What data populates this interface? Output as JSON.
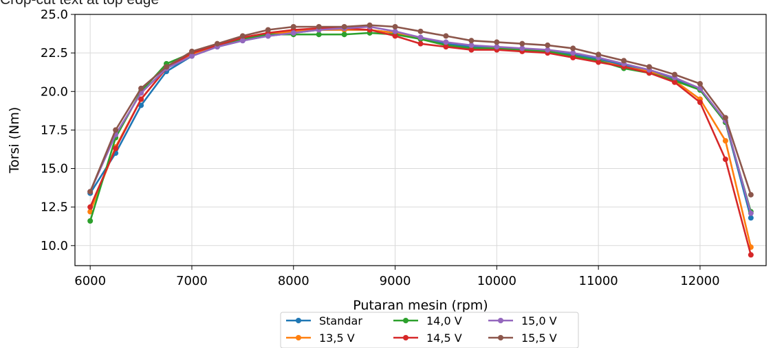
{
  "page_top_text": "Crop-cut text at top edge",
  "chart_data": {
    "type": "line",
    "title": "",
    "xlabel": "Putaran mesin (rpm)",
    "ylabel": "Torsi (Nm)",
    "xlim": [
      5850,
      12650
    ],
    "ylim": [
      8.7,
      25.0
    ],
    "xticks": [
      6000,
      7000,
      8000,
      9000,
      10000,
      11000,
      12000
    ],
    "yticks": [
      10.0,
      12.5,
      15.0,
      17.5,
      20.0,
      22.5,
      25.0
    ],
    "xtick_labels": [
      "6000",
      "7000",
      "8000",
      "9000",
      "10000",
      "11000",
      "12000"
    ],
    "ytick_labels": [
      "10.0",
      "12.5",
      "15.0",
      "17.5",
      "20.0",
      "22.5",
      "25.0"
    ],
    "grid": true,
    "legend_position": "bottom-center",
    "x": [
      6000,
      6250,
      6500,
      6750,
      7000,
      7250,
      7500,
      7750,
      8000,
      8250,
      8500,
      8750,
      9000,
      9250,
      9500,
      9750,
      10000,
      10250,
      10500,
      10750,
      11000,
      11250,
      11500,
      11750,
      12000,
      12250,
      12500
    ],
    "series": [
      {
        "name": "Standar",
        "color": "#1f77b4",
        "values": [
          13.4,
          16.0,
          19.1,
          21.3,
          22.3,
          22.9,
          23.3,
          23.6,
          23.8,
          24.0,
          24.0,
          24.0,
          23.8,
          23.5,
          23.1,
          22.9,
          22.8,
          22.7,
          22.6,
          22.4,
          22.1,
          21.7,
          21.3,
          20.8,
          20.1,
          18.0,
          11.8
        ]
      },
      {
        "name": "13,5 V",
        "color": "#ff7f0e",
        "values": [
          12.2,
          16.4,
          19.5,
          21.5,
          22.4,
          23.0,
          23.4,
          23.7,
          23.9,
          24.0,
          24.0,
          24.0,
          23.8,
          23.4,
          23.0,
          22.8,
          22.8,
          22.7,
          22.6,
          22.3,
          22.0,
          21.6,
          21.3,
          20.7,
          19.5,
          16.8,
          9.9
        ]
      },
      {
        "name": "14,0 V",
        "color": "#2ca02c",
        "values": [
          11.6,
          17.0,
          20.0,
          21.8,
          22.5,
          23.0,
          23.4,
          23.7,
          23.7,
          23.7,
          23.7,
          23.8,
          23.7,
          23.4,
          23.0,
          22.8,
          22.8,
          22.7,
          22.6,
          22.3,
          22.0,
          21.5,
          21.2,
          20.7,
          20.1,
          18.0,
          12.2
        ]
      },
      {
        "name": "14,5 V",
        "color": "#d62728",
        "values": [
          12.5,
          16.3,
          19.5,
          21.5,
          22.5,
          23.0,
          23.5,
          23.8,
          24.0,
          24.1,
          24.1,
          24.0,
          23.6,
          23.1,
          22.9,
          22.7,
          22.7,
          22.6,
          22.5,
          22.2,
          21.9,
          21.6,
          21.2,
          20.6,
          19.3,
          15.6,
          9.4
        ]
      },
      {
        "name": "15,0 V",
        "color": "#9467bd",
        "values": [
          13.5,
          17.2,
          19.9,
          21.5,
          22.3,
          22.9,
          23.3,
          23.6,
          23.8,
          24.0,
          24.1,
          24.2,
          23.9,
          23.5,
          23.2,
          23.0,
          22.9,
          22.8,
          22.7,
          22.5,
          22.2,
          21.8,
          21.4,
          20.9,
          20.2,
          18.1,
          12.1
        ]
      },
      {
        "name": "15,5 V",
        "color": "#8c564b",
        "values": [
          13.5,
          17.5,
          20.2,
          21.6,
          22.6,
          23.1,
          23.6,
          24.0,
          24.2,
          24.2,
          24.2,
          24.3,
          24.2,
          23.9,
          23.6,
          23.3,
          23.2,
          23.1,
          23.0,
          22.8,
          22.4,
          22.0,
          21.6,
          21.1,
          20.5,
          18.3,
          13.3
        ]
      }
    ]
  }
}
